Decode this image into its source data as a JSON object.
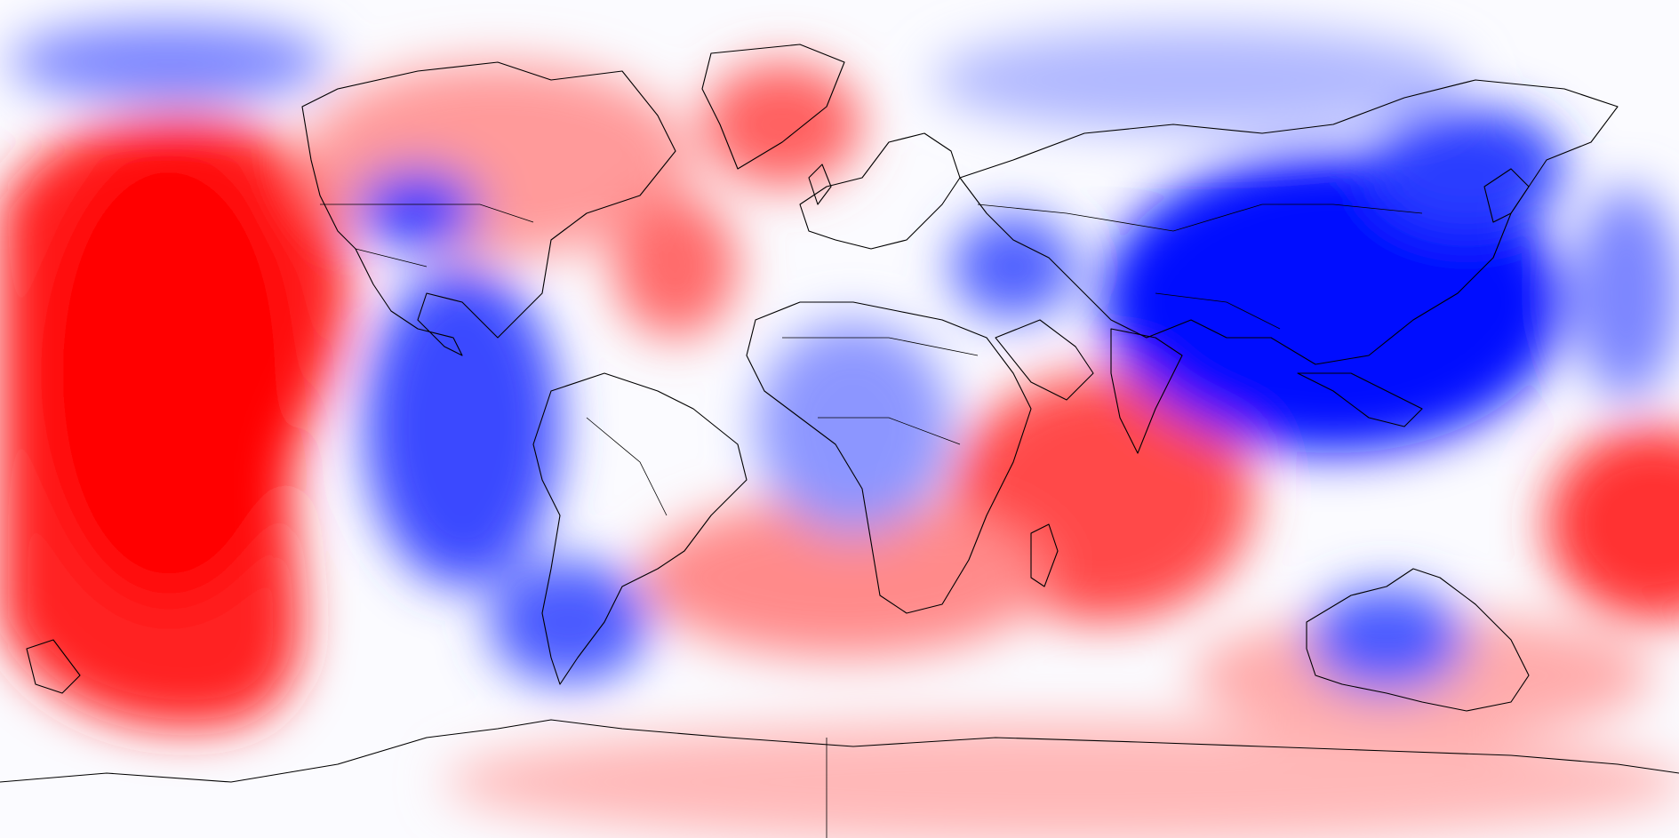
{
  "map": {
    "projection": "equirectangular",
    "colormap": {
      "negative": "#0000ff",
      "neutral": "#ffffff",
      "positive": "#ff0000"
    },
    "lon_range": [
      -180,
      180
    ],
    "lat_range": [
      -90,
      90
    ],
    "field": "anomaly",
    "field_units_shown": false
  }
}
